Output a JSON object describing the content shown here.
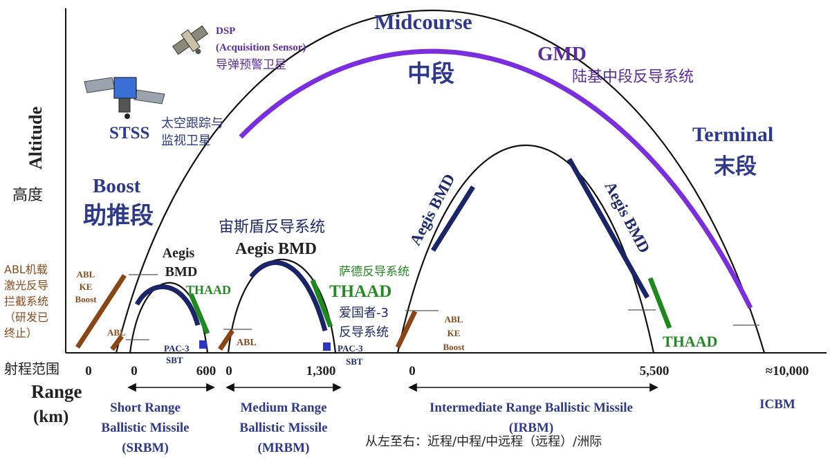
{
  "axis": {
    "y_label_en": "Altitude",
    "y_label_cn": "高度",
    "x_label_cn": "射程范围",
    "x_label_en_1": "Range",
    "x_label_en_2": "(km)",
    "ticks": [
      "0",
      "0",
      "600",
      "0",
      "1,300",
      "0",
      "5,500",
      "≈10,000"
    ]
  },
  "phases": {
    "boost_en": "Boost",
    "boost_cn": "助推段",
    "midcourse_en": "Midcourse",
    "midcourse_cn": "中段",
    "terminal_en": "Terminal",
    "terminal_cn": "末段"
  },
  "systems": {
    "gmd_en": "GMD",
    "gmd_cn": "陆基中段反导系统",
    "stss_en": "STSS",
    "stss_cn_1": "太空跟踪与",
    "stss_cn_2": "监视卫星",
    "dsp_en_1": "DSP",
    "dsp_en_2": "(Acquisition Sensor)",
    "dsp_cn": "导弹预警卫星",
    "aegis_cn": "宙斯盾反导系统",
    "aegis_mrbm": "Aegis BMD",
    "aegis_srbm_1": "Aegis",
    "aegis_srbm_2": "BMD",
    "aegis_irbm_left": "Aegis BMD",
    "aegis_irbm_right": "Aegis BMD",
    "thaad_cn": "萨德反导系统",
    "thaad_srbm": "THAAD",
    "thaad_mrbm": "THAAD",
    "thaad_irbm": "THAAD",
    "patriot_cn_1": "爱国者-3",
    "patriot_cn_2": "反导系统",
    "pac3_srbm_1": "PAC-3",
    "pac3_srbm_2": "SBT",
    "pac3_mrbm_1": "PAC-3",
    "pac3_mrbm_2": "SBT",
    "abl_cn_lines": [
      "ABL机载",
      "激光反导",
      "拦截系统",
      "（研发已",
      "终止）"
    ],
    "abl_srbm_lines": [
      "ABL",
      "KE",
      "Boost"
    ],
    "abl_small_srbm": "ABL",
    "abl_small_mrbm": "ABL",
    "abl_irbm_lines": [
      "ABL",
      "KE",
      "Boost"
    ]
  },
  "categories": {
    "srbm_lines": [
      "Short Range",
      "Ballistic Missile",
      "(SRBM)"
    ],
    "mrbm_lines": [
      "Medium Range",
      "Ballistic Missile",
      "(MRBM)"
    ],
    "irbm_lines": [
      "Intermediate Range Ballistic Missile",
      "(IRBM)"
    ],
    "icbm": "ICBM",
    "footnote": "从左至右：近程/中程/中远程（远程）/洲际"
  },
  "colors": {
    "purple": "#7a2ee0",
    "navy": "#1a2469",
    "green": "#1e8a1e",
    "brown": "#8b4513",
    "blue_sq": "#2b36c9"
  }
}
